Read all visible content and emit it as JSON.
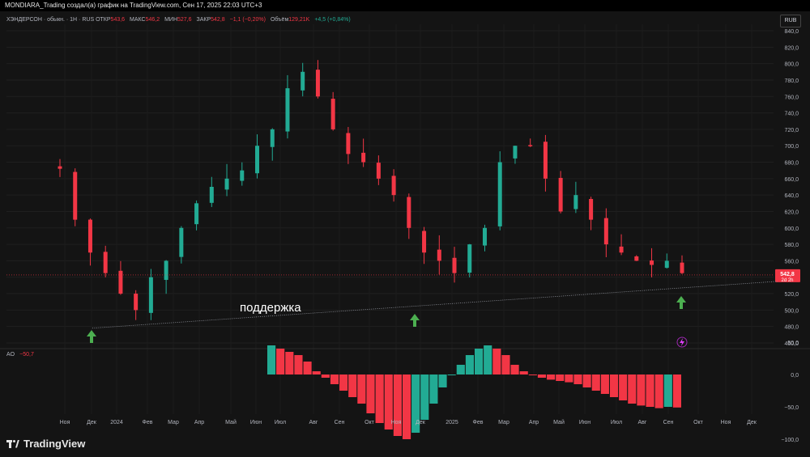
{
  "header": {
    "attribution": "MONDIARA_Trading создал(а) график на TradingView.com, Сен 17, 2025 22:03 UTC+3"
  },
  "legend": {
    "symbol": "ХЭНДЕРСОН · обыкн. · 1Н · RUS",
    "open_label": "ОТКР",
    "open": "543,6",
    "high_label": "МАКС",
    "high": "546,2",
    "low_label": "МИН",
    "low": "527,6",
    "close_label": "ЗАКР",
    "close": "542,8",
    "change": "−1,1 (−0,20%)",
    "volume_label": "Объём",
    "volume": "129,21K",
    "volume_change": "+4,5 (+0,84%)"
  },
  "currency": "RUB",
  "price_badge": {
    "price": "542,8",
    "countdown": "2d 2h"
  },
  "annotation": {
    "text": "поддержка"
  },
  "ao": {
    "label": "AO",
    "value": "−50,7"
  },
  "brand": "TradingView",
  "colors": {
    "up": "#22ab94",
    "down": "#f23645",
    "arrow": "#4caf50",
    "bg": "#141414"
  },
  "chart_data": {
    "type": "candlestick",
    "price_axis": {
      "min": 460,
      "max": 840,
      "ticks": [
        "840,0",
        "820,0",
        "800,0",
        "780,0",
        "760,0",
        "740,0",
        "720,0",
        "700,0",
        "680,0",
        "660,0",
        "640,0",
        "620,0",
        "600,0",
        "580,0",
        "560,0",
        "540,0",
        "520,0",
        "500,0",
        "480,0",
        "460,0"
      ]
    },
    "ao_axis": {
      "ticks": [
        "50,0",
        "0,0",
        "−50,0",
        "−100,0"
      ],
      "min": -115,
      "max": 60
    },
    "time_labels": [
      "Ноя",
      "Дек",
      "2024",
      "Фев",
      "Мар",
      "Апр",
      "Май",
      "Июн",
      "Июл",
      "Авг",
      "Сен",
      "Окт",
      "Ноя",
      "Дек",
      "2025",
      "Фев",
      "Мар",
      "Апр",
      "Май",
      "Июн",
      "Июл",
      "Авг",
      "Сен",
      "Окт",
      "Ноя",
      "Дек"
    ],
    "weekly_close_trend": [
      672,
      610,
      570,
      545,
      520,
      500,
      540,
      560,
      600,
      630,
      650,
      660,
      670,
      700,
      720,
      770,
      790,
      760,
      720,
      690,
      680,
      660,
      640,
      600,
      570,
      560,
      545,
      580,
      600,
      680,
      700,
      700,
      660,
      620,
      640,
      610,
      580,
      570,
      560,
      555,
      560,
      545
    ],
    "support_line": {
      "from_price": 478,
      "to_price": 535
    },
    "ao_values": [
      45,
      40,
      35,
      30,
      20,
      5,
      -5,
      -15,
      -25,
      -35,
      -45,
      -60,
      -75,
      -85,
      -95,
      -100,
      -90,
      -70,
      -45,
      -20,
      0,
      15,
      30,
      40,
      45,
      40,
      30,
      15,
      5,
      0,
      -5,
      -8,
      -10,
      -12,
      -15,
      -20,
      -25,
      -30,
      -35,
      -40,
      -45,
      -48,
      -50,
      -52,
      -50,
      -51
    ]
  }
}
